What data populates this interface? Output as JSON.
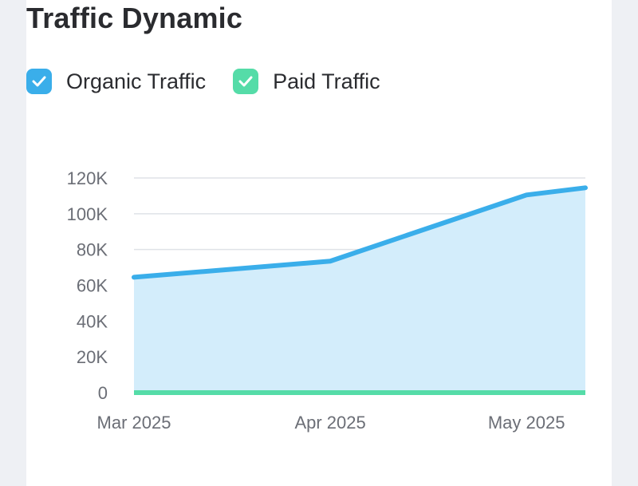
{
  "title": "Traffic Dynamic",
  "legend": {
    "items": [
      {
        "label": "Organic Traffic",
        "color": "#3aaeea",
        "checked": true,
        "icon": "check-icon"
      },
      {
        "label": "Paid Traffic",
        "color": "#55dca8",
        "checked": true,
        "icon": "check-icon"
      }
    ]
  },
  "chart_data": {
    "type": "area",
    "x_labels": [
      "Mar 2025",
      "Apr 2025",
      "May 2025"
    ],
    "x": [
      0,
      1,
      2,
      2.3
    ],
    "ylim": [
      0,
      120000
    ],
    "y_ticks": [
      0,
      20000,
      40000,
      60000,
      80000,
      100000,
      120000
    ],
    "y_tick_labels": [
      "0",
      "20K",
      "40K",
      "60K",
      "80K",
      "100K",
      "120K"
    ],
    "grid": true,
    "series": [
      {
        "name": "Organic Traffic",
        "color": "#3aaeea",
        "fill": "#d3edfb",
        "values": [
          64500,
          73500,
          110500,
          114500
        ]
      },
      {
        "name": "Paid Traffic",
        "color": "#55dca8",
        "values": [
          0,
          0,
          0,
          0
        ]
      }
    ]
  }
}
